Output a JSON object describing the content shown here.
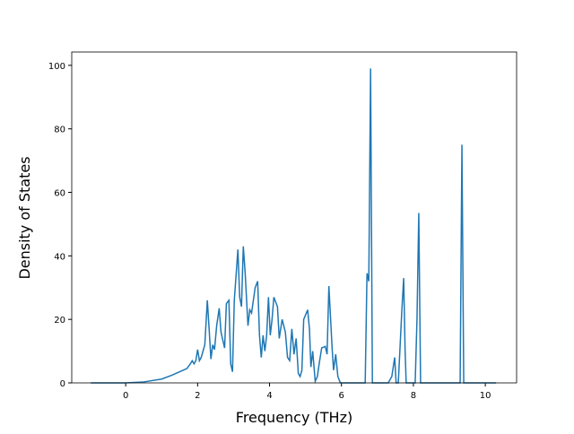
{
  "chart_data": {
    "type": "line",
    "xlabel": "Frequency (THz)",
    "ylabel": "Density of States",
    "x": [
      -0.97,
      0,
      0.5,
      1.0,
      1.3,
      1.6,
      1.7,
      1.8,
      1.85,
      1.9,
      1.95,
      2.0,
      2.05,
      2.1,
      2.2,
      2.27,
      2.32,
      2.37,
      2.42,
      2.47,
      2.53,
      2.6,
      2.65,
      2.75,
      2.8,
      2.87,
      2.92,
      2.97,
      3.02,
      3.12,
      3.17,
      3.22,
      3.27,
      3.32,
      3.4,
      3.45,
      3.5,
      3.6,
      3.67,
      3.72,
      3.77,
      3.82,
      3.87,
      3.92,
      3.97,
      4.02,
      4.07,
      4.12,
      4.22,
      4.27,
      4.35,
      4.44,
      4.5,
      4.56,
      4.62,
      4.68,
      4.74,
      4.8,
      4.85,
      4.9,
      4.95,
      5.06,
      5.11,
      5.15,
      5.2,
      5.27,
      5.33,
      5.38,
      5.45,
      5.55,
      5.6,
      5.65,
      5.74,
      5.78,
      5.84,
      5.9,
      5.97,
      6.02,
      6.66,
      6.71,
      6.76,
      6.81,
      6.86,
      7.3,
      7.4,
      7.48,
      7.52,
      7.58,
      7.68,
      7.73,
      7.77,
      7.8,
      8.05,
      8.1,
      8.15,
      8.2,
      9.3,
      9.35,
      9.4,
      10.3
    ],
    "series": [
      {
        "color": "#1f77b4",
        "values": [
          0,
          0,
          0.3,
          1.2,
          2.5,
          4,
          4.5,
          6,
          7,
          6,
          7,
          10.5,
          7,
          8,
          12,
          26,
          17,
          7.5,
          12,
          10.5,
          18,
          23.5,
          16,
          11,
          25,
          26,
          6,
          3.5,
          26,
          42,
          27,
          24,
          43,
          35,
          18,
          23,
          22,
          30,
          32,
          15,
          8,
          15,
          10,
          15,
          27,
          15,
          20,
          27,
          24,
          14,
          20,
          16,
          8,
          7,
          17,
          9,
          14,
          3,
          2,
          4,
          20,
          23,
          17,
          5,
          10,
          0.5,
          2,
          6,
          11,
          11.5,
          9,
          30.5,
          11,
          4,
          9,
          2,
          0,
          0,
          0,
          34.5,
          32,
          99,
          0,
          0,
          2,
          8,
          0,
          0,
          23,
          33,
          10,
          0,
          0,
          20,
          53.5,
          0,
          0,
          75,
          0,
          0
        ]
      }
    ],
    "xlim": [
      -1.5,
      10.87
    ],
    "ylim": [
      0,
      104.2
    ],
    "xticks": [
      0,
      2,
      4,
      6,
      8,
      10
    ],
    "yticks": [
      0,
      20,
      40,
      60,
      80,
      100
    ]
  }
}
